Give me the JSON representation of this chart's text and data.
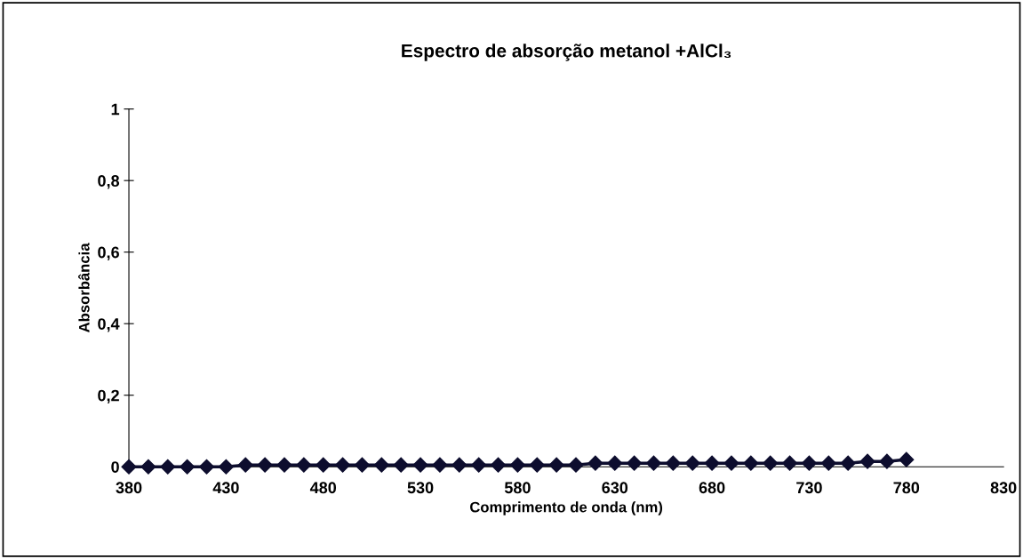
{
  "chart_data": {
    "type": "line",
    "title": "Espectro de absorção metanol +AlCl₃",
    "xlabel": "Comprimento de onda (nm)",
    "ylabel": "Absorbância",
    "x": [
      380,
      390,
      400,
      410,
      420,
      430,
      440,
      450,
      460,
      470,
      480,
      490,
      500,
      510,
      520,
      530,
      540,
      550,
      560,
      570,
      580,
      590,
      600,
      610,
      620,
      630,
      640,
      650,
      660,
      670,
      680,
      690,
      700,
      710,
      720,
      730,
      740,
      750,
      760,
      770,
      780
    ],
    "series": [
      {
        "color": "#0d0d2e",
        "values": [
          0,
          0,
          0,
          0,
          0,
          0,
          0.005,
          0.005,
          0.005,
          0.005,
          0.005,
          0.005,
          0.005,
          0.005,
          0.005,
          0.005,
          0.005,
          0.005,
          0.005,
          0.005,
          0.005,
          0.005,
          0.005,
          0.005,
          0.01,
          0.01,
          0.01,
          0.01,
          0.01,
          0.01,
          0.01,
          0.01,
          0.01,
          0.01,
          0.01,
          0.01,
          0.01,
          0.01,
          0.015,
          0.015,
          0.02
        ]
      }
    ],
    "xlim": [
      380,
      830
    ],
    "xticks": [
      380,
      430,
      480,
      530,
      580,
      630,
      680,
      730,
      780,
      830
    ],
    "ylim": [
      0,
      1
    ],
    "yticks": [
      0,
      {
        "value": 0.2,
        "label": "0,2"
      },
      {
        "value": 0.4,
        "label": "0,4"
      },
      {
        "value": 0.6,
        "label": "0,6"
      },
      {
        "value": 0.8,
        "label": "0,8"
      },
      1
    ],
    "marker": "diamond",
    "line_style": "solid",
    "grid": false,
    "legend": false
  }
}
